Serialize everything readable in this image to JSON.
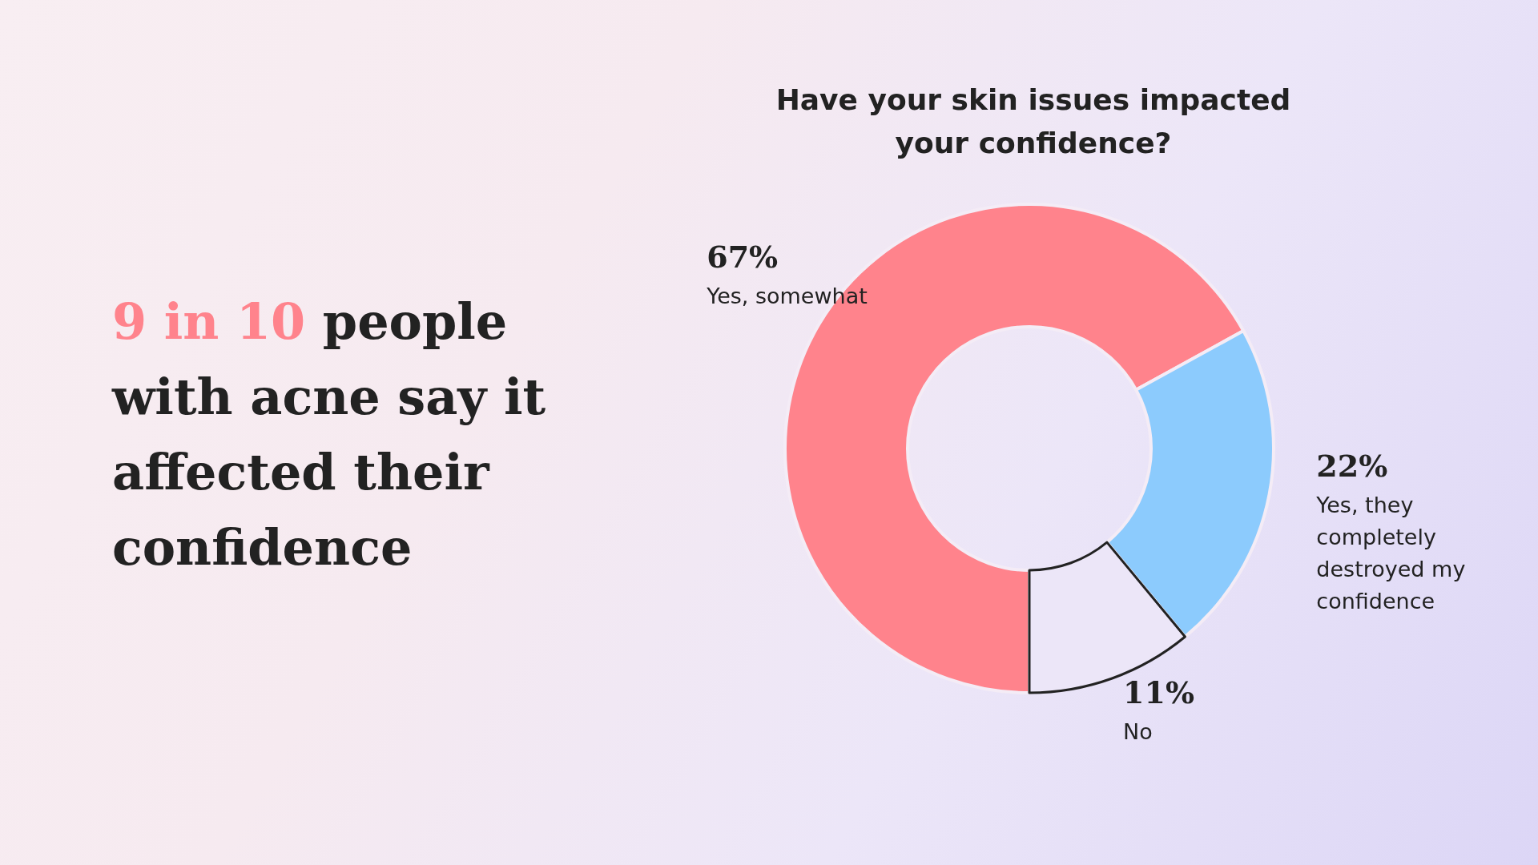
{
  "chart_data": {
    "type": "donut",
    "title": "Have your skin issues impacted your confidence?",
    "categories": [
      "Yes, somewhat",
      "Yes, they completely destroyed my confidence",
      "No"
    ],
    "values": [
      67,
      22,
      11
    ],
    "colors": [
      "#ff838c",
      "#8ccbfd",
      "#ece6f8"
    ],
    "value_labels": [
      "67%",
      "22%",
      "11%"
    ],
    "annotations": [
      "9 in 10",
      "people with acne say it affected their confidence"
    ]
  }
}
